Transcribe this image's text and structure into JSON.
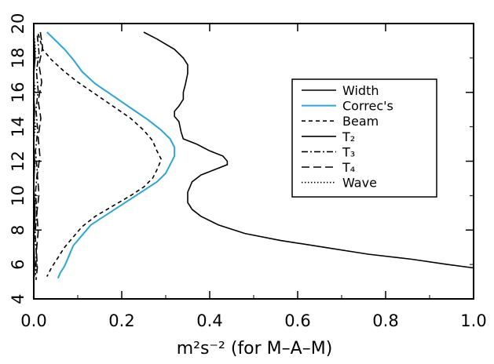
{
  "chart_data": {
    "type": "line",
    "title": "",
    "xlabel": "m²s⁻² (for M–A–M)",
    "ylabel": "",
    "xlim": [
      0.0,
      1.0
    ],
    "ylim": [
      4,
      20
    ],
    "xticks": [
      "0.0",
      "0.2",
      "0.4",
      "0.6",
      "0.8",
      "1.0"
    ],
    "yticks": [
      "4",
      "8",
      "12",
      "16",
      "20"
    ],
    "minor_yticks": [
      "6",
      "10",
      "14",
      "18"
    ],
    "grid": false,
    "legend_placement": "center-right",
    "series": [
      {
        "name": "Width",
        "color": "#000000",
        "dash": "solid",
        "points": [
          [
            0.25,
            19.5
          ],
          [
            0.28,
            19.1
          ],
          [
            0.32,
            18.5
          ],
          [
            0.34,
            18.0
          ],
          [
            0.35,
            17.6
          ],
          [
            0.35,
            17.1
          ],
          [
            0.345,
            16.5
          ],
          [
            0.34,
            16.0
          ],
          [
            0.34,
            15.6
          ],
          [
            0.33,
            15.2
          ],
          [
            0.32,
            14.9
          ],
          [
            0.32,
            14.6
          ],
          [
            0.33,
            14.3
          ],
          [
            0.335,
            13.7
          ],
          [
            0.34,
            13.3
          ],
          [
            0.37,
            13.0
          ],
          [
            0.4,
            12.6
          ],
          [
            0.43,
            12.3
          ],
          [
            0.44,
            12.0
          ],
          [
            0.44,
            11.8
          ],
          [
            0.41,
            11.5
          ],
          [
            0.38,
            11.2
          ],
          [
            0.36,
            10.8
          ],
          [
            0.35,
            10.2
          ],
          [
            0.35,
            9.6
          ],
          [
            0.36,
            9.2
          ],
          [
            0.38,
            8.8
          ],
          [
            0.42,
            8.3
          ],
          [
            0.48,
            7.8
          ],
          [
            0.56,
            7.4
          ],
          [
            0.66,
            7.0
          ],
          [
            0.76,
            6.6
          ],
          [
            0.86,
            6.3
          ],
          [
            0.94,
            6.0
          ],
          [
            1.0,
            5.8
          ]
        ]
      },
      {
        "name": "Correc's",
        "color": "#2aa7d6",
        "dash": "solid",
        "points": [
          [
            0.03,
            19.5
          ],
          [
            0.05,
            19.0
          ],
          [
            0.07,
            18.5
          ],
          [
            0.09,
            17.9
          ],
          [
            0.11,
            17.2
          ],
          [
            0.14,
            16.5
          ],
          [
            0.18,
            15.8
          ],
          [
            0.22,
            15.1
          ],
          [
            0.26,
            14.4
          ],
          [
            0.29,
            13.8
          ],
          [
            0.31,
            13.3
          ],
          [
            0.32,
            12.8
          ],
          [
            0.32,
            12.3
          ],
          [
            0.31,
            11.8
          ],
          [
            0.3,
            11.3
          ],
          [
            0.28,
            10.8
          ],
          [
            0.25,
            10.3
          ],
          [
            0.22,
            9.8
          ],
          [
            0.19,
            9.3
          ],
          [
            0.16,
            8.8
          ],
          [
            0.13,
            8.3
          ],
          [
            0.11,
            7.7
          ],
          [
            0.09,
            7.1
          ],
          [
            0.08,
            6.5
          ],
          [
            0.07,
            5.9
          ],
          [
            0.06,
            5.5
          ],
          [
            0.055,
            5.2
          ]
        ]
      },
      {
        "name": "Beam",
        "color": "#000000",
        "dash": "5,4",
        "points": [
          [
            0.01,
            19.4
          ],
          [
            0.015,
            19.0
          ],
          [
            0.02,
            18.5
          ],
          [
            0.04,
            17.9
          ],
          [
            0.07,
            17.2
          ],
          [
            0.1,
            16.6
          ],
          [
            0.14,
            15.9
          ],
          [
            0.18,
            15.2
          ],
          [
            0.22,
            14.5
          ],
          [
            0.25,
            13.8
          ],
          [
            0.27,
            13.2
          ],
          [
            0.28,
            12.6
          ],
          [
            0.29,
            12.1
          ],
          [
            0.28,
            11.5
          ],
          [
            0.27,
            11.0
          ],
          [
            0.25,
            10.5
          ],
          [
            0.22,
            10.0
          ],
          [
            0.18,
            9.4
          ],
          [
            0.14,
            8.8
          ],
          [
            0.11,
            8.2
          ],
          [
            0.09,
            7.6
          ],
          [
            0.07,
            7.0
          ],
          [
            0.055,
            6.4
          ],
          [
            0.04,
            5.8
          ],
          [
            0.03,
            5.3
          ]
        ]
      },
      {
        "name": "T₂",
        "color": "#000000",
        "dash": "solid",
        "points": [
          [
            0.0,
            19.4
          ],
          [
            0.003,
            18.0
          ],
          [
            -0.002,
            16.5
          ],
          [
            0.002,
            15.0
          ],
          [
            -0.001,
            13.5
          ],
          [
            0.002,
            12.0
          ],
          [
            0.0,
            10.5
          ],
          [
            0.003,
            9.0
          ],
          [
            0.0,
            7.5
          ],
          [
            0.002,
            6.0
          ],
          [
            0.0,
            5.0
          ]
        ]
      },
      {
        "name": "T₃",
        "color": "#000000",
        "dash": "8,3,2,3",
        "points": [
          [
            0.008,
            19.3
          ],
          [
            0.012,
            18.3
          ],
          [
            0.006,
            17.2
          ],
          [
            0.01,
            16.1
          ],
          [
            0.005,
            15.0
          ],
          [
            0.009,
            13.8
          ],
          [
            0.004,
            12.6
          ],
          [
            0.008,
            11.4
          ],
          [
            0.004,
            10.2
          ],
          [
            0.007,
            9.0
          ],
          [
            0.003,
            7.8
          ],
          [
            0.006,
            6.6
          ],
          [
            0.004,
            5.4
          ]
        ]
      },
      {
        "name": "T₄",
        "color": "#000000",
        "dash": "10,5",
        "points": [
          [
            0.015,
            19.5
          ],
          [
            0.02,
            18.6
          ],
          [
            0.012,
            17.6
          ],
          [
            0.018,
            16.6
          ],
          [
            0.01,
            15.5
          ],
          [
            0.016,
            14.5
          ],
          [
            0.01,
            13.4
          ],
          [
            0.014,
            12.3
          ],
          [
            0.008,
            11.2
          ],
          [
            0.012,
            10.1
          ],
          [
            0.007,
            9.0
          ],
          [
            0.01,
            7.9
          ],
          [
            0.006,
            6.8
          ],
          [
            0.008,
            5.8
          ],
          [
            0.005,
            5.1
          ]
        ]
      },
      {
        "name": "Wave",
        "color": "#000000",
        "dash": "1.5,2.5",
        "points": [
          [
            0.0,
            19.5
          ],
          [
            0.004,
            18.4
          ],
          [
            -0.003,
            17.3
          ],
          [
            0.003,
            16.2
          ],
          [
            -0.002,
            15.1
          ],
          [
            0.004,
            14.0
          ],
          [
            -0.002,
            12.9
          ],
          [
            0.003,
            11.8
          ],
          [
            -0.002,
            10.7
          ],
          [
            0.003,
            9.6
          ],
          [
            -0.002,
            8.5
          ],
          [
            0.002,
            7.4
          ],
          [
            -0.002,
            6.3
          ],
          [
            0.002,
            5.2
          ]
        ]
      }
    ]
  }
}
